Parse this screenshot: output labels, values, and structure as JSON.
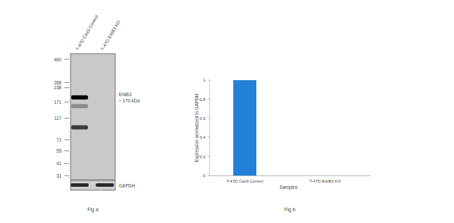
{
  "western_blot": {
    "lanes": [
      "T-47D Cas9 Control",
      "T-47D ErbB3 KO"
    ],
    "markers": [
      460,
      268,
      238,
      171,
      117,
      71,
      55,
      41,
      31
    ],
    "target_label": "ErbB3",
    "target_size": "~ 170 kDa",
    "loading_control": "GAPDH",
    "caption": "Fig a",
    "bands": [
      {
        "lane": 0,
        "kda": 190,
        "intensity": 1
      },
      {
        "lane": 0,
        "kda": 155,
        "intensity": 0.3
      },
      {
        "lane": 0,
        "kda": 95,
        "intensity": 0.7
      }
    ]
  },
  "chart_data": {
    "type": "bar",
    "caption": "Fig b",
    "x_label": "Samples",
    "y_label": "Expression normalized to GAPDH",
    "categories": [
      "T-47D Cas9 Control",
      "T-47D ErbB3 KO"
    ],
    "values": [
      1,
      0
    ],
    "color": "#2380d6",
    "ylim": [
      0,
      1
    ],
    "yticks": [
      0,
      0.2,
      0.4,
      0.6,
      0.8,
      1
    ],
    "grid": false
  }
}
